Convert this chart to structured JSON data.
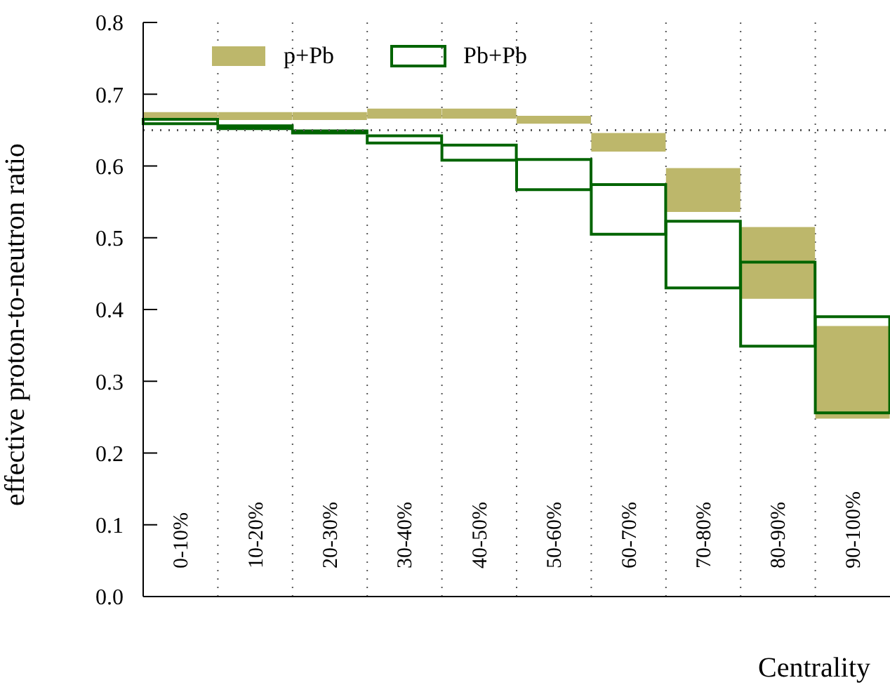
{
  "chart_data": {
    "type": "bar",
    "xlabel": "Centrality",
    "ylabel": "effective proton-to-neutron ratio",
    "categories": [
      "0-10%",
      "10-20%",
      "20-30%",
      "30-40%",
      "40-50%",
      "50-60%",
      "60-70%",
      "70-80%",
      "80-90%",
      "90-100%"
    ],
    "series": [
      {
        "name": "p+Pb",
        "color": "#bdb76b",
        "base": [
          0.664,
          0.664,
          0.664,
          0.666,
          0.666,
          0.659,
          0.62,
          0.536,
          0.415,
          0.248
        ],
        "values": [
          0.011,
          0.011,
          0.011,
          0.014,
          0.014,
          0.011,
          0.026,
          0.061,
          0.1,
          0.129
        ]
      },
      {
        "name": "Pb+Pb",
        "color": "#006400",
        "base": [
          0.659,
          0.652,
          0.646,
          0.632,
          0.608,
          0.567,
          0.505,
          0.43,
          0.349,
          0.256
        ],
        "values": [
          0.006,
          0.004,
          0.003,
          0.01,
          0.021,
          0.042,
          0.069,
          0.093,
          0.117,
          0.134
        ]
      }
    ],
    "ylim": [
      0,
      0.8
    ],
    "yticks": [
      {
        "value": 0,
        "label": "0.0"
      },
      {
        "value": 0.1,
        "label": "0.1"
      },
      {
        "value": 0.2,
        "label": "0.2"
      },
      {
        "value": 0.3,
        "label": "0.3"
      },
      {
        "value": 0.4,
        "label": "0.4"
      },
      {
        "value": 0.5,
        "label": "0.5"
      },
      {
        "value": 0.6,
        "label": "0.6"
      },
      {
        "value": 0.7,
        "label": "0.7"
      },
      {
        "value": 0.8,
        "label": "0.8"
      }
    ],
    "ref_lines": [
      {
        "axis": "y",
        "value": 0.65,
        "line_style": "dotted",
        "color": "#555555"
      }
    ],
    "grid": "x",
    "legend": "top left"
  }
}
